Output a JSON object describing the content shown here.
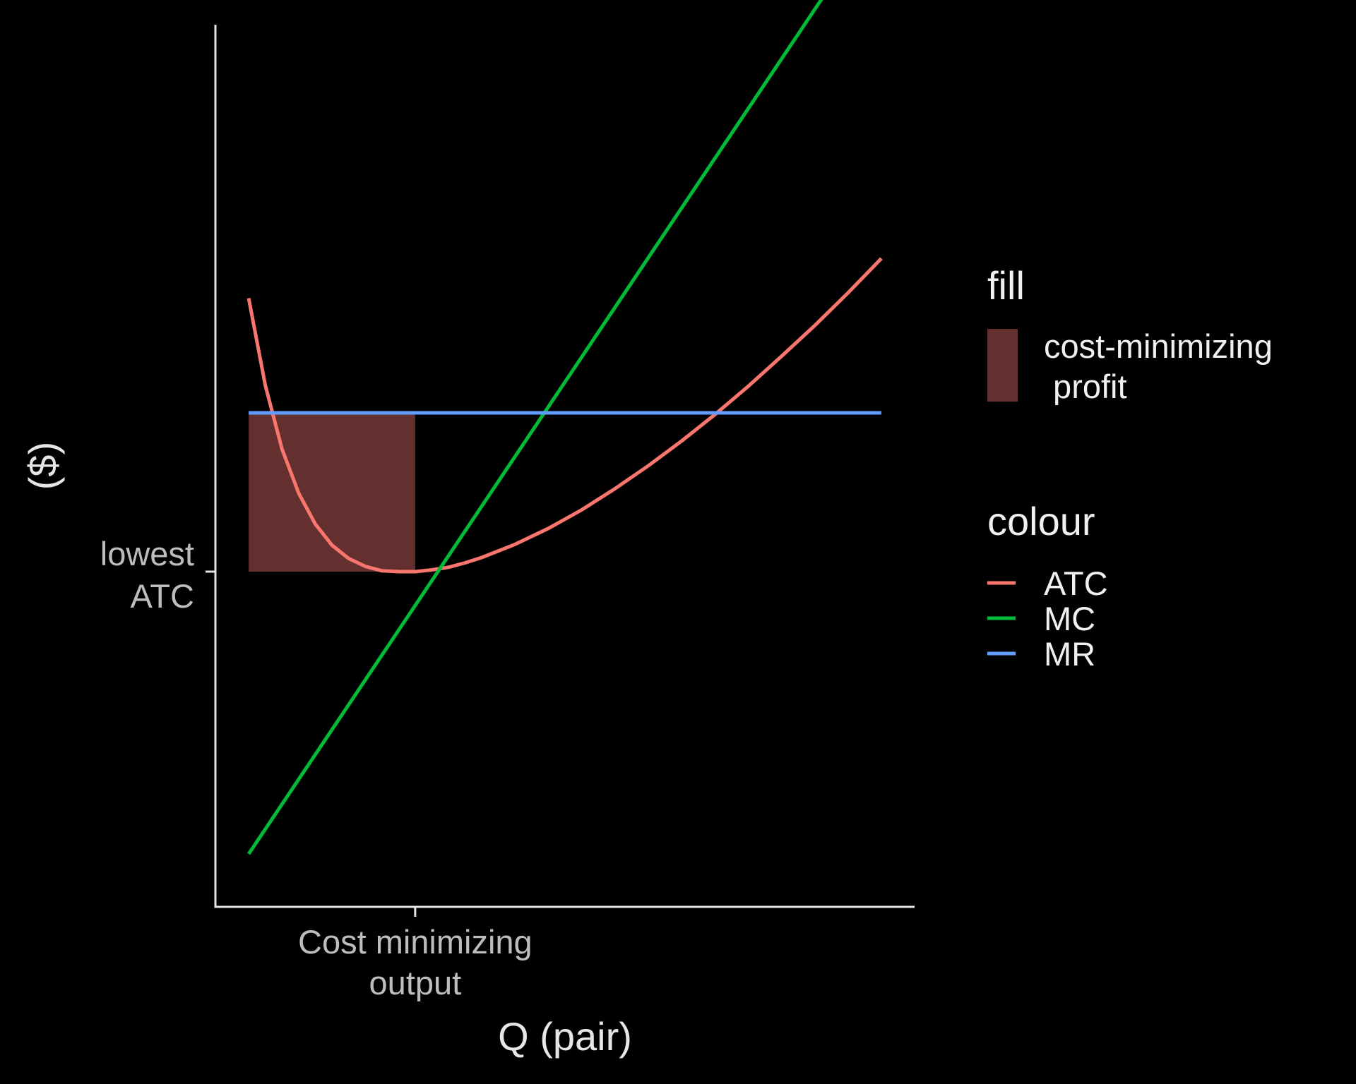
{
  "chart_data": {
    "type": "line",
    "xlabel": "Q (pair)",
    "ylabel": "($)",
    "xlim": [
      0,
      10.5
    ],
    "ylim": [
      0,
      10
    ],
    "x_ticks": [
      {
        "value": 3,
        "label_lines": [
          "Cost minimizing",
          "output"
        ]
      }
    ],
    "y_ticks": [
      {
        "value": 3.8,
        "label_lines": [
          "lowest",
          "ATC"
        ]
      }
    ],
    "grid": false,
    "legend_position": "right",
    "colors": {
      "background": "#000000",
      "axis": "#e6e6e6",
      "tick_label": "#bdbdbd",
      "ATC": "#F8766D",
      "MC": "#00BA38",
      "MR": "#619CFF",
      "profit_fill": "#632F2F"
    },
    "fill_region": {
      "name_lines": [
        "cost-minimizing",
        " profit"
      ],
      "x": [
        0.5,
        3.0
      ],
      "y": [
        3.8,
        5.6
      ]
    },
    "series": [
      {
        "name": "ATC",
        "x": [
          0.5,
          0.75,
          1.0,
          1.25,
          1.5,
          1.75,
          2.0,
          2.25,
          2.5,
          2.75,
          3.0,
          3.25,
          3.5,
          3.75,
          4.0,
          4.5,
          5.0,
          5.5,
          6.0,
          6.5,
          7.0,
          7.5,
          8.0,
          8.5,
          9.0,
          9.5,
          10.0
        ],
        "y": [
          6.9,
          5.91,
          5.19,
          4.69,
          4.34,
          4.1,
          3.95,
          3.86,
          3.81,
          3.8,
          3.8,
          3.82,
          3.85,
          3.9,
          3.96,
          4.11,
          4.29,
          4.5,
          4.74,
          5.0,
          5.28,
          5.58,
          5.9,
          6.24,
          6.59,
          6.96,
          7.35
        ]
      },
      {
        "name": "MC",
        "x": [
          0.5,
          10.0
        ],
        "y": [
          0.6,
          11.3
        ]
      },
      {
        "name": "MR",
        "x": [
          0.5,
          10.0
        ],
        "y": [
          5.6,
          5.6
        ]
      }
    ],
    "legend": {
      "fill_title": "fill",
      "colour_title": "colour",
      "colour_entries": [
        "ATC",
        "MC",
        "MR"
      ]
    }
  }
}
